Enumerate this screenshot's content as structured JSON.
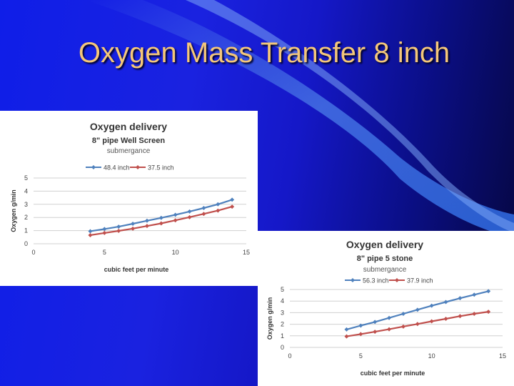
{
  "slide": {
    "title": "Oxygen Mass Transfer 8 inch"
  },
  "colors": {
    "series_blue": "#4f81bd",
    "series_red": "#c0504d",
    "title_text": "#f4c77a"
  },
  "chart_data": [
    {
      "type": "line",
      "title": "Oxygen delivery",
      "subtitle": "8\" pipe Well Screen",
      "legend_title": "submergance",
      "legend_position": "top",
      "xlabel": "cubic feet per minute",
      "ylabel": "Oxygen g/min",
      "xlim": [
        0,
        15
      ],
      "ylim": [
        0,
        5
      ],
      "xticks": [
        "0",
        "5",
        "10",
        "15"
      ],
      "yticks": [
        "0",
        "1",
        "2",
        "3",
        "4",
        "5"
      ],
      "grid": true,
      "x": [
        4,
        5,
        6,
        7,
        8,
        9,
        10,
        11,
        12,
        13,
        14
      ],
      "series": [
        {
          "name": "48.4 inch",
          "color": "#4f81bd",
          "values": [
            0.95,
            1.12,
            1.3,
            1.52,
            1.75,
            1.97,
            2.2,
            2.45,
            2.72,
            3.0,
            3.35
          ]
        },
        {
          "name": "37.5 inch",
          "color": "#c0504d",
          "values": [
            0.65,
            0.82,
            0.98,
            1.15,
            1.35,
            1.55,
            1.78,
            2.02,
            2.27,
            2.52,
            2.82
          ]
        }
      ]
    },
    {
      "type": "line",
      "title": "Oxygen delivery",
      "subtitle": "8\" pipe 5 stone",
      "legend_title": "submergance",
      "legend_position": "top",
      "xlabel": "cubic feet per minute",
      "ylabel": "Oxygen g/min",
      "xlim": [
        0,
        15
      ],
      "ylim": [
        0,
        5
      ],
      "xticks": [
        "0",
        "5",
        "10",
        "15"
      ],
      "yticks": [
        "0",
        "1",
        "2",
        "3",
        "4",
        "5"
      ],
      "grid": true,
      "x": [
        4,
        5,
        6,
        7,
        8,
        9,
        10,
        11,
        12,
        13,
        14
      ],
      "series": [
        {
          "name": "56.3 inch",
          "color": "#4f81bd",
          "values": [
            1.55,
            1.88,
            2.2,
            2.55,
            2.9,
            3.25,
            3.6,
            3.92,
            4.25,
            4.55,
            4.85
          ]
        },
        {
          "name": "37.9 inch",
          "color": "#c0504d",
          "values": [
            0.95,
            1.15,
            1.35,
            1.57,
            1.8,
            2.02,
            2.25,
            2.47,
            2.7,
            2.9,
            3.08
          ]
        }
      ]
    }
  ]
}
